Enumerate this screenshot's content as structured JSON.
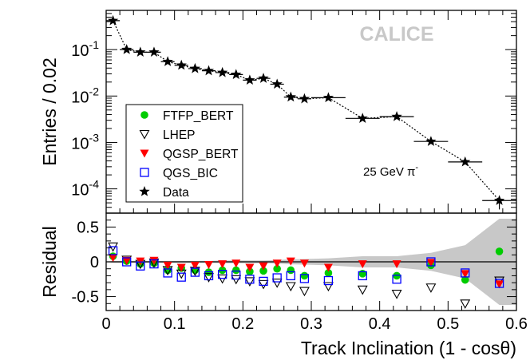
{
  "chart_data": [
    {
      "type": "scatter",
      "panel": "distribution",
      "yscale": "log",
      "ylabel": "Entries / 0.02",
      "xlim": [
        0,
        0.6
      ],
      "ylim": [
        3e-05,
        0.7
      ],
      "y_tick_labels": [
        {
          "value": 0.1,
          "base": "10",
          "exp": "-1"
        },
        {
          "value": 0.01,
          "base": "10",
          "exp": "-2"
        },
        {
          "value": 0.001,
          "base": "10",
          "exp": "-3"
        },
        {
          "value": 0.0001,
          "base": "10",
          "exp": "-4"
        }
      ],
      "watermark": "CALICE",
      "annotation": {
        "text": "25 GeV π",
        "sup": "-"
      },
      "legend_position": "bottom-left",
      "legend": [
        {
          "label": "FTFP_BERT",
          "marker": "circle",
          "color": "#00cc00"
        },
        {
          "label": "LHEP",
          "marker": "triangle-down-open",
          "color": "#000000"
        },
        {
          "label": "QGSP_BERT",
          "marker": "triangle-down",
          "color": "#ff0000"
        },
        {
          "label": "QGS_BIC",
          "marker": "square-open",
          "color": "#0000ff"
        },
        {
          "label": "Data",
          "marker": "star",
          "color": "#000000"
        }
      ],
      "series": [
        {
          "name": "Data",
          "points": [
            {
              "x": 0.01,
              "y": 0.42,
              "xerr": 0.01
            },
            {
              "x": 0.03,
              "y": 0.1,
              "xerr": 0.01
            },
            {
              "x": 0.05,
              "y": 0.088,
              "xerr": 0.01
            },
            {
              "x": 0.07,
              "y": 0.088,
              "xerr": 0.01
            },
            {
              "x": 0.09,
              "y": 0.055,
              "xerr": 0.01
            },
            {
              "x": 0.11,
              "y": 0.046,
              "xerr": 0.01
            },
            {
              "x": 0.13,
              "y": 0.039,
              "xerr": 0.01
            },
            {
              "x": 0.15,
              "y": 0.035,
              "xerr": 0.01
            },
            {
              "x": 0.17,
              "y": 0.032,
              "xerr": 0.01
            },
            {
              "x": 0.19,
              "y": 0.029,
              "xerr": 0.01
            },
            {
              "x": 0.21,
              "y": 0.022,
              "xerr": 0.01
            },
            {
              "x": 0.23,
              "y": 0.024,
              "xerr": 0.01
            },
            {
              "x": 0.25,
              "y": 0.018,
              "xerr": 0.01
            },
            {
              "x": 0.27,
              "y": 0.0095,
              "xerr": 0.01
            },
            {
              "x": 0.29,
              "y": 0.0087,
              "xerr": 0.01
            },
            {
              "x": 0.325,
              "y": 0.0092,
              "xerr": 0.025
            },
            {
              "x": 0.375,
              "y": 0.0033,
              "xerr": 0.025
            },
            {
              "x": 0.425,
              "y": 0.0036,
              "xerr": 0.025
            },
            {
              "x": 0.475,
              "y": 0.00105,
              "xerr": 0.025
            },
            {
              "x": 0.525,
              "y": 0.00038,
              "xerr": 0.025
            },
            {
              "x": 0.575,
              "y": 5.6e-05,
              "xerr": 0.025,
              "yerr_low": 2e-05,
              "yerr_high": 1e-05
            }
          ]
        }
      ]
    },
    {
      "type": "scatter",
      "panel": "residual",
      "xlabel": "Track Inclination (1 - cosθ)",
      "ylabel": "Residual",
      "xlim": [
        0,
        0.6
      ],
      "ylim": [
        -0.7,
        0.7
      ],
      "x_ticks": [
        "0",
        "0.1",
        "0.2",
        "0.3",
        "0.4",
        "0.5",
        "0.6"
      ],
      "y_ticks": [
        "0.5",
        "0",
        "-0.5"
      ],
      "x": [
        0.01,
        0.03,
        0.05,
        0.07,
        0.09,
        0.11,
        0.13,
        0.15,
        0.17,
        0.19,
        0.21,
        0.23,
        0.25,
        0.27,
        0.29,
        0.325,
        0.375,
        0.425,
        0.475,
        0.525,
        0.575
      ],
      "data_uncertainty_band": [
        0.015,
        0.015,
        0.015,
        0.015,
        0.015,
        0.015,
        0.015,
        0.015,
        0.02,
        0.02,
        0.02,
        0.02,
        0.025,
        0.035,
        0.04,
        0.05,
        0.08,
        0.08,
        0.13,
        0.24,
        0.62
      ],
      "series": [
        {
          "name": "FTFP_BERT",
          "values": [
            0.08,
            0.01,
            -0.03,
            -0.02,
            -0.12,
            -0.09,
            -0.12,
            -0.15,
            -0.12,
            -0.12,
            -0.14,
            -0.13,
            -0.1,
            -0.12,
            -0.2,
            -0.16,
            -0.17,
            -0.2,
            -0.05,
            -0.26,
            0.15
          ]
        },
        {
          "name": "LHEP",
          "values": [
            0.22,
            0.03,
            -0.03,
            -0.01,
            -0.12,
            -0.17,
            -0.13,
            -0.22,
            -0.24,
            -0.25,
            -0.28,
            -0.32,
            -0.3,
            -0.35,
            -0.42,
            -0.35,
            -0.4,
            -0.46,
            -0.37,
            -0.6,
            -0.27
          ]
        },
        {
          "name": "QGSP_BERT",
          "values": [
            0.06,
            0.02,
            0.01,
            0.02,
            -0.05,
            -0.08,
            -0.05,
            -0.04,
            -0.03,
            -0.02,
            -0.08,
            -0.06,
            -0.02,
            0.01,
            -0.02,
            -0.08,
            -0.03,
            -0.03,
            -0.01,
            -0.17,
            -0.32
          ]
        },
        {
          "name": "QGS_BIC",
          "values": [
            0.16,
            0.0,
            -0.06,
            -0.03,
            -0.16,
            -0.22,
            -0.15,
            -0.2,
            -0.18,
            -0.19,
            -0.25,
            -0.28,
            -0.23,
            -0.2,
            -0.24,
            -0.27,
            -0.2,
            -0.25,
            0.0,
            -0.16,
            -0.31
          ]
        }
      ]
    }
  ]
}
